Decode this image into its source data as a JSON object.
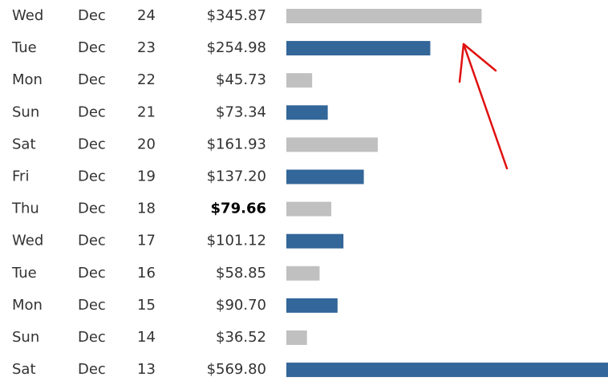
{
  "rows": [
    {
      "weekday": "Wed",
      "month": "Dec",
      "day": 24,
      "amount": 345.87,
      "amount_label": "$345.87",
      "color": "#c0c0c0"
    },
    {
      "weekday": "Tue",
      "month": "Dec",
      "day": 23,
      "amount": 254.98,
      "amount_label": "$254.98",
      "color": "#336699"
    },
    {
      "weekday": "Mon",
      "month": "Dec",
      "day": 22,
      "amount": 45.73,
      "amount_label": "$45.73",
      "color": "#c0c0c0"
    },
    {
      "weekday": "Sun",
      "month": "Dec",
      "day": 21,
      "amount": 73.34,
      "amount_label": "$73.34",
      "color": "#336699"
    },
    {
      "weekday": "Sat",
      "month": "Dec",
      "day": 20,
      "amount": 161.93,
      "amount_label": "$161.93",
      "color": "#c0c0c0"
    },
    {
      "weekday": "Fri",
      "month": "Dec",
      "day": 19,
      "amount": 137.2,
      "amount_label": "$137.20",
      "color": "#336699"
    },
    {
      "weekday": "Thu",
      "month": "Dec",
      "day": 18,
      "amount": 79.66,
      "amount_label": "$79.66",
      "color": "#c0c0c0"
    },
    {
      "weekday": "Wed",
      "month": "Dec",
      "day": 17,
      "amount": 101.12,
      "amount_label": "$101.12",
      "color": "#336699"
    },
    {
      "weekday": "Tue",
      "month": "Dec",
      "day": 16,
      "amount": 58.85,
      "amount_label": "$58.85",
      "color": "#c0c0c0"
    },
    {
      "weekday": "Mon",
      "month": "Dec",
      "day": 15,
      "amount": 90.7,
      "amount_label": "$90.70",
      "color": "#336699"
    },
    {
      "weekday": "Sun",
      "month": "Dec",
      "day": 14,
      "amount": 36.52,
      "amount_label": "$36.52",
      "color": "#c0c0c0"
    },
    {
      "weekday": "Sat",
      "month": "Dec",
      "day": 13,
      "amount": 569.8,
      "amount_label": "$569.80",
      "color": "#336699"
    }
  ],
  "bold_index": 6
}
